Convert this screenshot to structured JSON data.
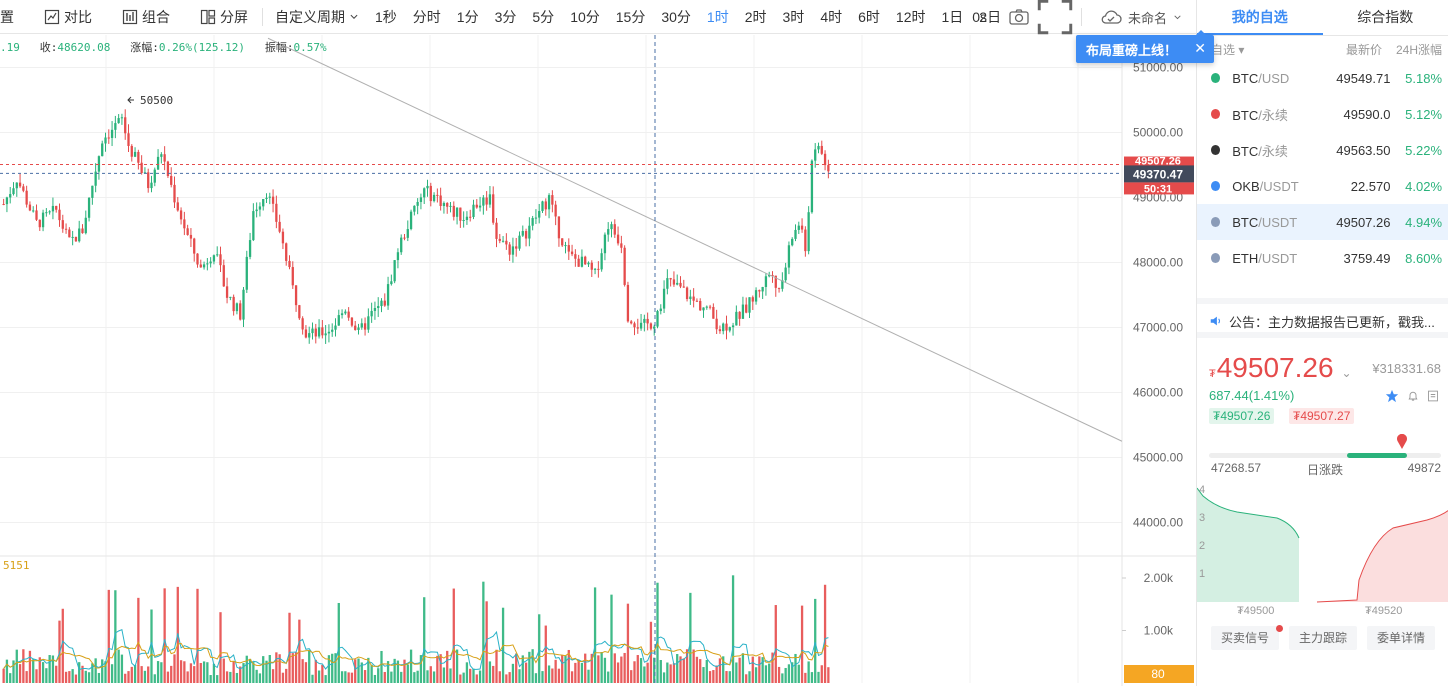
{
  "toolbar": {
    "settings": "置",
    "compare": "对比",
    "combine": "组合",
    "split": "分屏",
    "custom_period": "自定义周期",
    "periods": [
      "1秒",
      "分时",
      "1分",
      "3分",
      "5分",
      "10分",
      "15分",
      "30分",
      "1时",
      "2时",
      "3时",
      "4时",
      "6时",
      "12时",
      "1日",
      "2日"
    ],
    "active_period": "1时",
    "countdown": "0s",
    "layout_name": "未命名"
  },
  "ohlc": {
    "open_fragment": ".19",
    "close_label": "收:",
    "close": "48620.08",
    "change_label": "涨幅:",
    "change": "0.26%(125.12)",
    "amplitude_label": "振幅:",
    "amplitude": "0.57%"
  },
  "volume_label": "5151",
  "toast": {
    "text": "布局重磅上线！",
    "close": "✕"
  },
  "annotation_high": "50500",
  "price_axis": {
    "ticks": [
      "51000.00",
      "50000.00",
      "49000.00",
      "48000.00",
      "47000.00",
      "46000.00",
      "45000.00",
      "44000.00"
    ],
    "last_price": "49507.26",
    "marker_price": "49370.47",
    "countdown": "50:31",
    "vol_ticks": [
      "2.00k",
      "1.00k"
    ],
    "vol_badge": "80"
  },
  "chart_data": {
    "type": "candlestick",
    "ylim": [
      43500,
      51500
    ],
    "vol_ylim": [
      0,
      2400
    ],
    "candles": [],
    "colors": {
      "up": "#2ab27b",
      "down": "#e54b4b"
    }
  },
  "panel": {
    "tabs": [
      "我的自选",
      "综合指数"
    ],
    "active_tab": "我的自选",
    "list_header": {
      "filter": "自选",
      "price": "最新价",
      "change": "24H涨幅"
    },
    "watchlist": [
      {
        "base": "BTC",
        "quote": "/USD",
        "price": "49549.71",
        "change": "5.18%",
        "color": "#2ab27b"
      },
      {
        "base": "BTC",
        "quote": "/永续",
        "price": "49590.0",
        "change": "5.12%",
        "color": "#e54b4b"
      },
      {
        "base": "BTC",
        "quote": "/永续",
        "price": "49563.50",
        "change": "5.22%",
        "color": "#333333"
      },
      {
        "base": "OKB",
        "quote": "/USDT",
        "price": "22.570",
        "change": "4.02%",
        "color": "#3d8cf4"
      },
      {
        "base": "BTC",
        "quote": "/USDT",
        "price": "49507.26",
        "change": "4.94%",
        "color": "#8a9bb8"
      },
      {
        "base": "ETH",
        "quote": "/USDT",
        "price": "3759.49",
        "change": "8.60%",
        "color": "#8a9bb8"
      }
    ],
    "selected_index": 4,
    "notice": "公告：主力数据报告已更新，戳我...",
    "quote": {
      "currency": "₮",
      "price": "49507.26",
      "cny": "¥318331.68",
      "change": "687.44(1.41%)",
      "bid": "₮49507.26",
      "ask": "₮49507.27",
      "low": "47268.57",
      "high": "49872",
      "range_label": "日涨跌",
      "depth_ticks": [
        "4",
        "3",
        "2",
        "1"
      ],
      "depth_bid": "₮49500",
      "depth_ask": "₮49520",
      "buttons": [
        "买卖信号",
        "主力跟踪",
        "委单详情"
      ]
    }
  }
}
